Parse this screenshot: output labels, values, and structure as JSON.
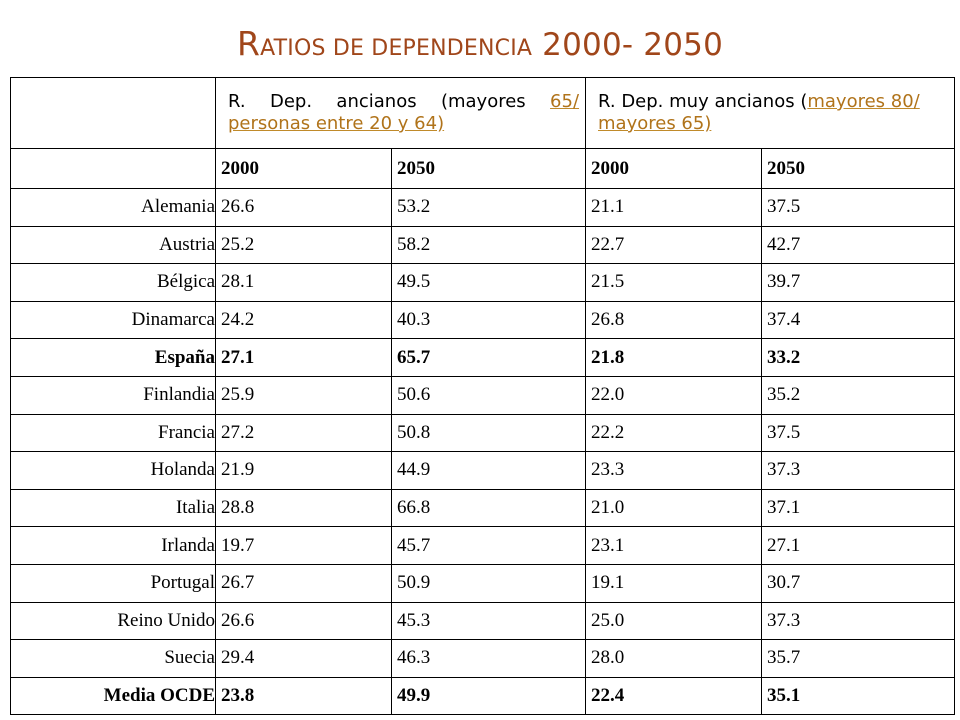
{
  "title": {
    "first_letter": "R",
    "rest": "ATIOS DE DEPENDENCIA",
    "years": "2000- 2050"
  },
  "header": {
    "col1": {
      "normal": "R. Dep. ancianos (mayores ",
      "highlight": "65/ personas entre 20 y 64)"
    },
    "col2": {
      "normal": "R. Dep. muy ancianos (",
      "highlight": "mayores 80/ mayores 65)"
    },
    "years": [
      "2000",
      "2050",
      "2000",
      "2050"
    ]
  },
  "rows": [
    {
      "country": "Alemania",
      "values": [
        "26.6",
        "53.2",
        "21.1",
        "37.5"
      ],
      "bold": false
    },
    {
      "country": "Austria",
      "values": [
        "25.2",
        "58.2",
        "22.7",
        "42.7"
      ],
      "bold": false
    },
    {
      "country": "Bélgica",
      "values": [
        "28.1",
        "49.5",
        "21.5",
        "39.7"
      ],
      "bold": false
    },
    {
      "country": "Dinamarca",
      "values": [
        "24.2",
        "40.3",
        "26.8",
        "37.4"
      ],
      "bold": false
    },
    {
      "country": "España",
      "values": [
        "27.1",
        "65.7",
        "21.8",
        "33.2"
      ],
      "bold": true
    },
    {
      "country": "Finlandia",
      "values": [
        "25.9",
        "50.6",
        "22.0",
        "35.2"
      ],
      "bold": false
    },
    {
      "country": "Francia",
      "values": [
        "27.2",
        "50.8",
        "22.2",
        "37.5"
      ],
      "bold": false
    },
    {
      "country": "Holanda",
      "values": [
        "21.9",
        "44.9",
        "23.3",
        "37.3"
      ],
      "bold": false
    },
    {
      "country": "Italia",
      "values": [
        "28.8",
        "66.8",
        "21.0",
        "37.1"
      ],
      "bold": false
    },
    {
      "country": "Irlanda",
      "values": [
        "19.7",
        "45.7",
        "23.1",
        "27.1"
      ],
      "bold": false
    },
    {
      "country": "Portugal",
      "values": [
        "26.7",
        "50.9",
        "19.1",
        "30.7"
      ],
      "bold": false
    },
    {
      "country": "Reino Unido",
      "values": [
        "26.6",
        "45.3",
        "25.0",
        "37.3"
      ],
      "bold": false
    },
    {
      "country": "Suecia",
      "values": [
        "29.4",
        "46.3",
        "28.0",
        "35.7"
      ],
      "bold": false
    },
    {
      "country": "Media OCDE",
      "values": [
        "23.8",
        "49.9",
        "22.4",
        "35.1"
      ],
      "bold": true
    }
  ],
  "colors": {
    "title": "#a0461a",
    "highlight": "#b0731a",
    "border": "#000000"
  }
}
